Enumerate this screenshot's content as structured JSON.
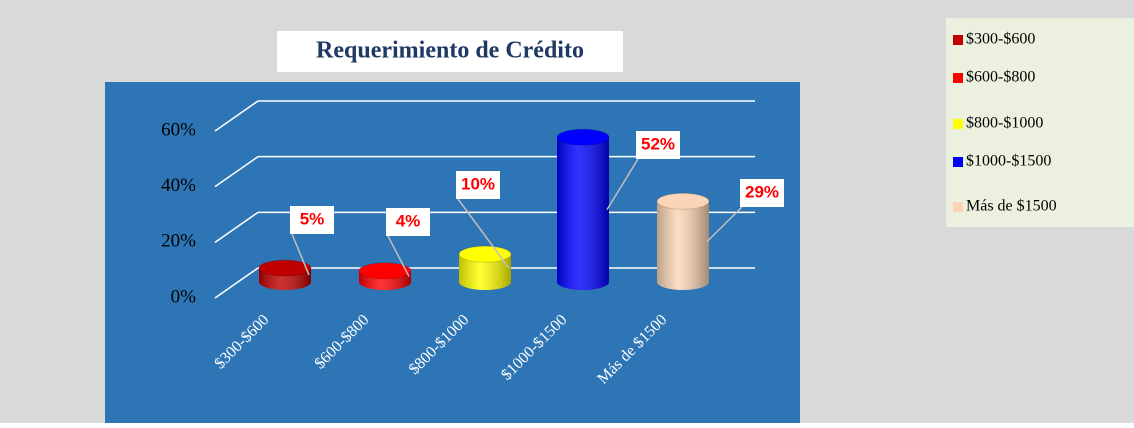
{
  "chart_data": {
    "type": "bar",
    "title": "Requerimiento de Crédito",
    "categories": [
      "$300-$600",
      "$600-$800",
      "$800-$1000",
      "$1000-$1500",
      "Más de $1500"
    ],
    "values": [
      5,
      4,
      10,
      52,
      29
    ],
    "value_labels": [
      "5%",
      "4%",
      "10%",
      "52%",
      "29%"
    ],
    "colors": [
      "#c00000",
      "#ff0000",
      "#ffff00",
      "#0000ff",
      "#fbd5b5"
    ],
    "ylim": [
      0,
      60
    ],
    "yticks": [
      {
        "value": 0,
        "label": "0%"
      },
      {
        "value": 20,
        "label": "20%"
      },
      {
        "value": 40,
        "label": "40%"
      },
      {
        "value": 60,
        "label": "60%"
      }
    ],
    "grid": true,
    "legend": "right"
  }
}
